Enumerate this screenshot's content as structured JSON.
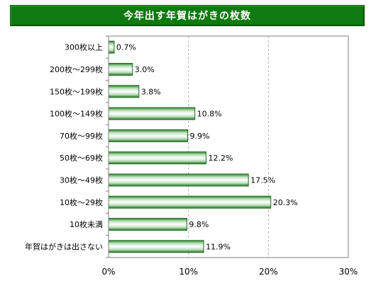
{
  "title": "今年出す年賀はがきの枚数",
  "colors": {
    "title_bg": "#0f7a0f",
    "bar_dark": "#1e7a1e",
    "bar_mid": "#ffffff",
    "bar_border": "#1f6a1f",
    "grid": "#b0b0b0"
  },
  "chart_data": {
    "type": "bar",
    "orientation": "horizontal",
    "categories": [
      "300枚以上",
      "200枚～299枚",
      "150枚～199枚",
      "100枚～149枚",
      "70枚～99枚",
      "50枚～69枚",
      "30枚～49枚",
      "10枚～29枚",
      "10枚未満",
      "年賀はがきは出さない"
    ],
    "values": [
      0.7,
      3.0,
      3.8,
      10.8,
      9.9,
      12.2,
      17.5,
      20.3,
      9.8,
      11.9
    ],
    "value_labels": [
      "0.7%",
      "3.0%",
      "3.8%",
      "10.8%",
      "9.9%",
      "12.2%",
      "17.5%",
      "20.3%",
      "9.8%",
      "11.9%"
    ],
    "ticks": [
      0,
      10,
      20,
      30
    ],
    "tick_labels": [
      "0%",
      "10%",
      "20%",
      "30%"
    ],
    "xlim": [
      0,
      30
    ],
    "grid": true,
    "title": "今年出す年賀はがきの枚数"
  }
}
